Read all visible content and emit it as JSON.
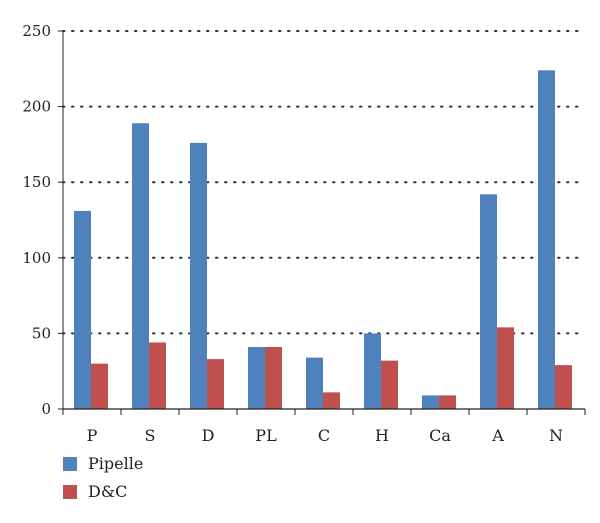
{
  "chart_data": {
    "type": "bar",
    "title": "",
    "xlabel": "",
    "ylabel": "",
    "categories": [
      "P",
      "S",
      "D",
      "PL",
      "C",
      "H",
      "Ca",
      "A",
      "N"
    ],
    "series": [
      {
        "name": "Pipelle",
        "color": "#4f81bd",
        "values": [
          131,
          189,
          176,
          41,
          34,
          50,
          9,
          142,
          224
        ]
      },
      {
        "name": "D&C",
        "color": "#c0504d",
        "values": [
          30,
          44,
          33,
          41,
          11,
          32,
          9,
          54,
          29
        ]
      }
    ],
    "ylim": [
      0,
      250
    ],
    "yticks": [
      "0",
      "50",
      "100",
      "150",
      "200",
      "250"
    ],
    "grid": "horizontal dotted",
    "legend_position": "bottom-left"
  }
}
